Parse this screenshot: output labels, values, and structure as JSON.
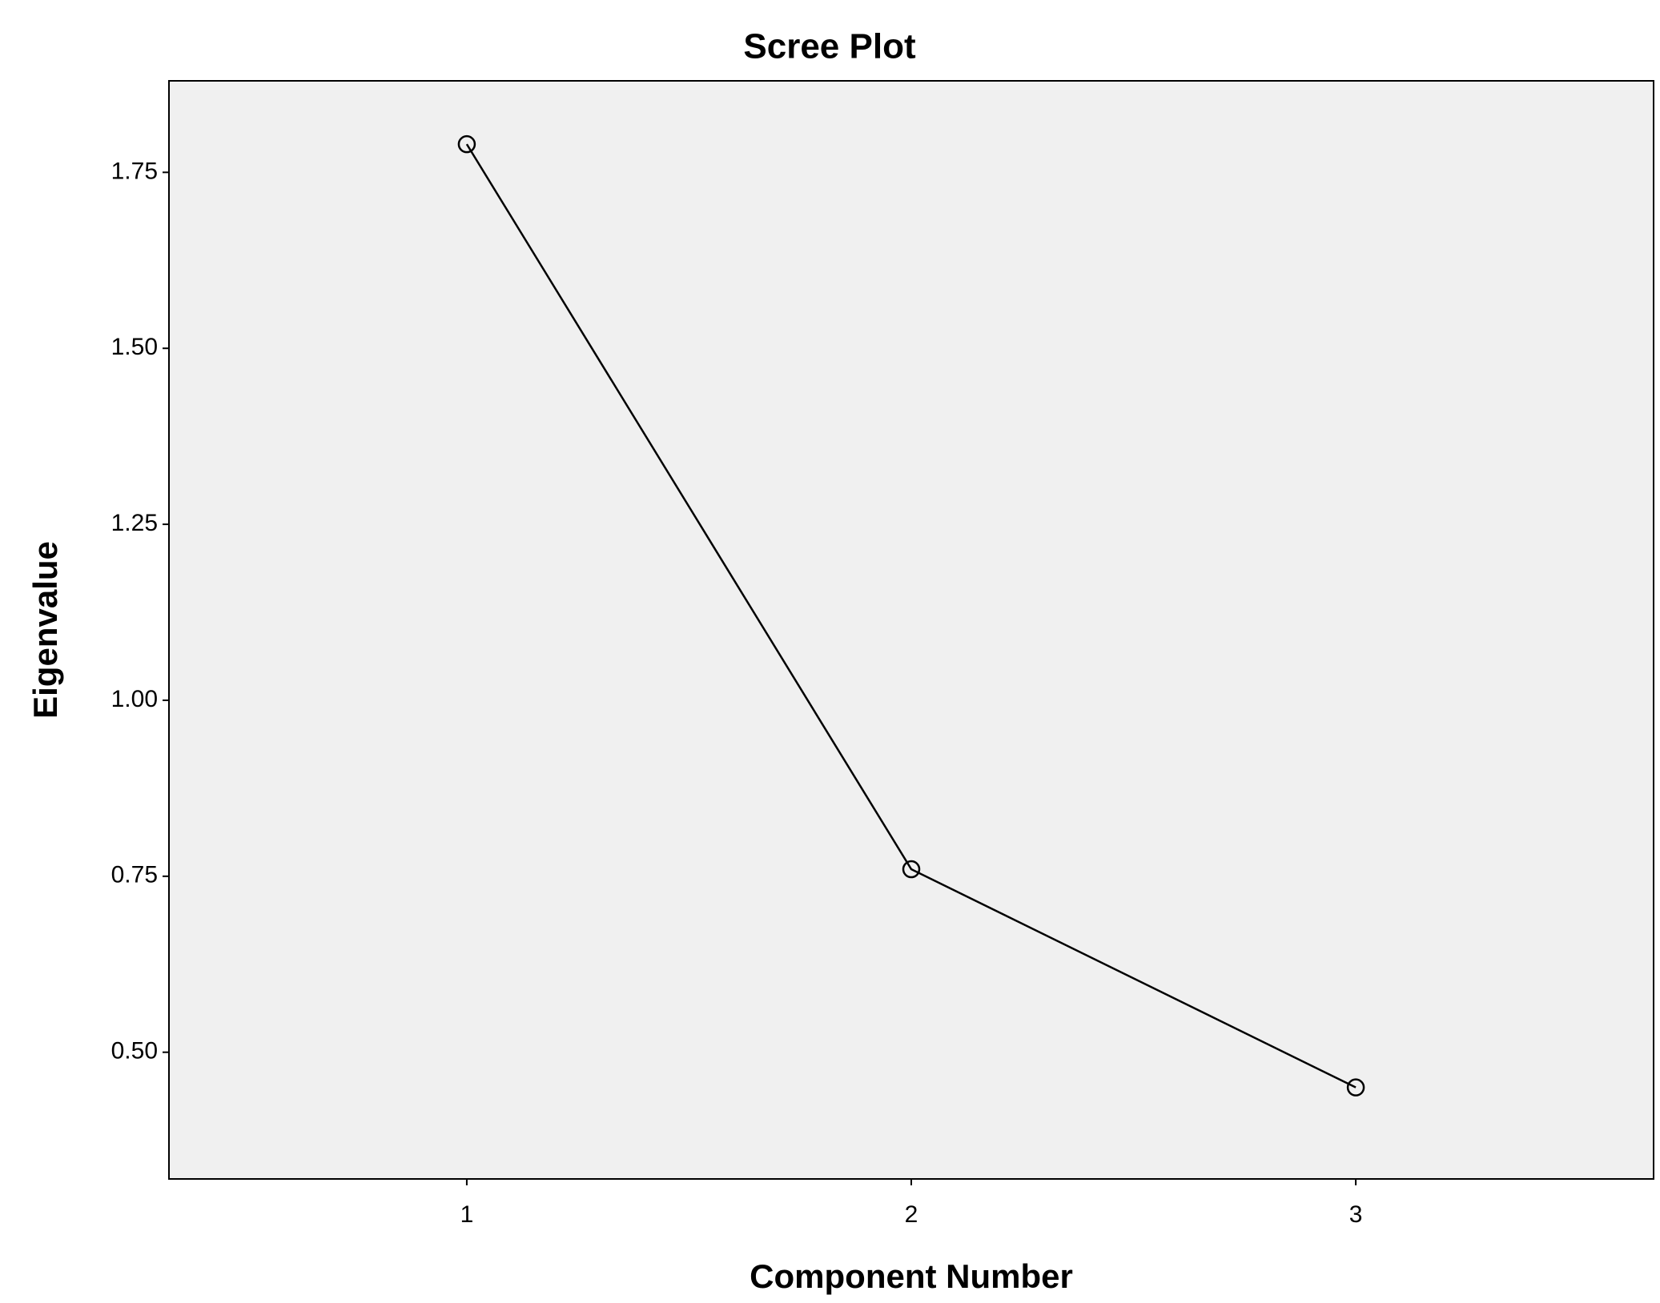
{
  "chart_data": {
    "type": "line",
    "title": "Scree Plot",
    "x_label": "Component Number",
    "y_label": "Eigenvalue",
    "x": [
      1,
      2,
      3
    ],
    "series": [
      {
        "name": "Eigenvalue",
        "color": "#000000",
        "values": [
          1.79,
          0.76,
          0.45
        ]
      }
    ],
    "xlim": [
      0.33,
      3.67
    ],
    "xticks": [
      1,
      2,
      3
    ],
    "ylim": [
      0.32,
      1.88
    ],
    "yticks": [
      {
        "value": 0.5,
        "label": "0.50"
      },
      {
        "value": 0.75,
        "label": "0.75"
      },
      {
        "value": 1.0,
        "label": "1.00"
      },
      {
        "value": 1.25,
        "label": "1.25"
      },
      {
        "value": 1.5,
        "label": "1.50"
      },
      {
        "value": 1.75,
        "label": "1.75"
      }
    ],
    "grid": false,
    "marker": "circle",
    "plot_background": "#f0f0f0"
  }
}
